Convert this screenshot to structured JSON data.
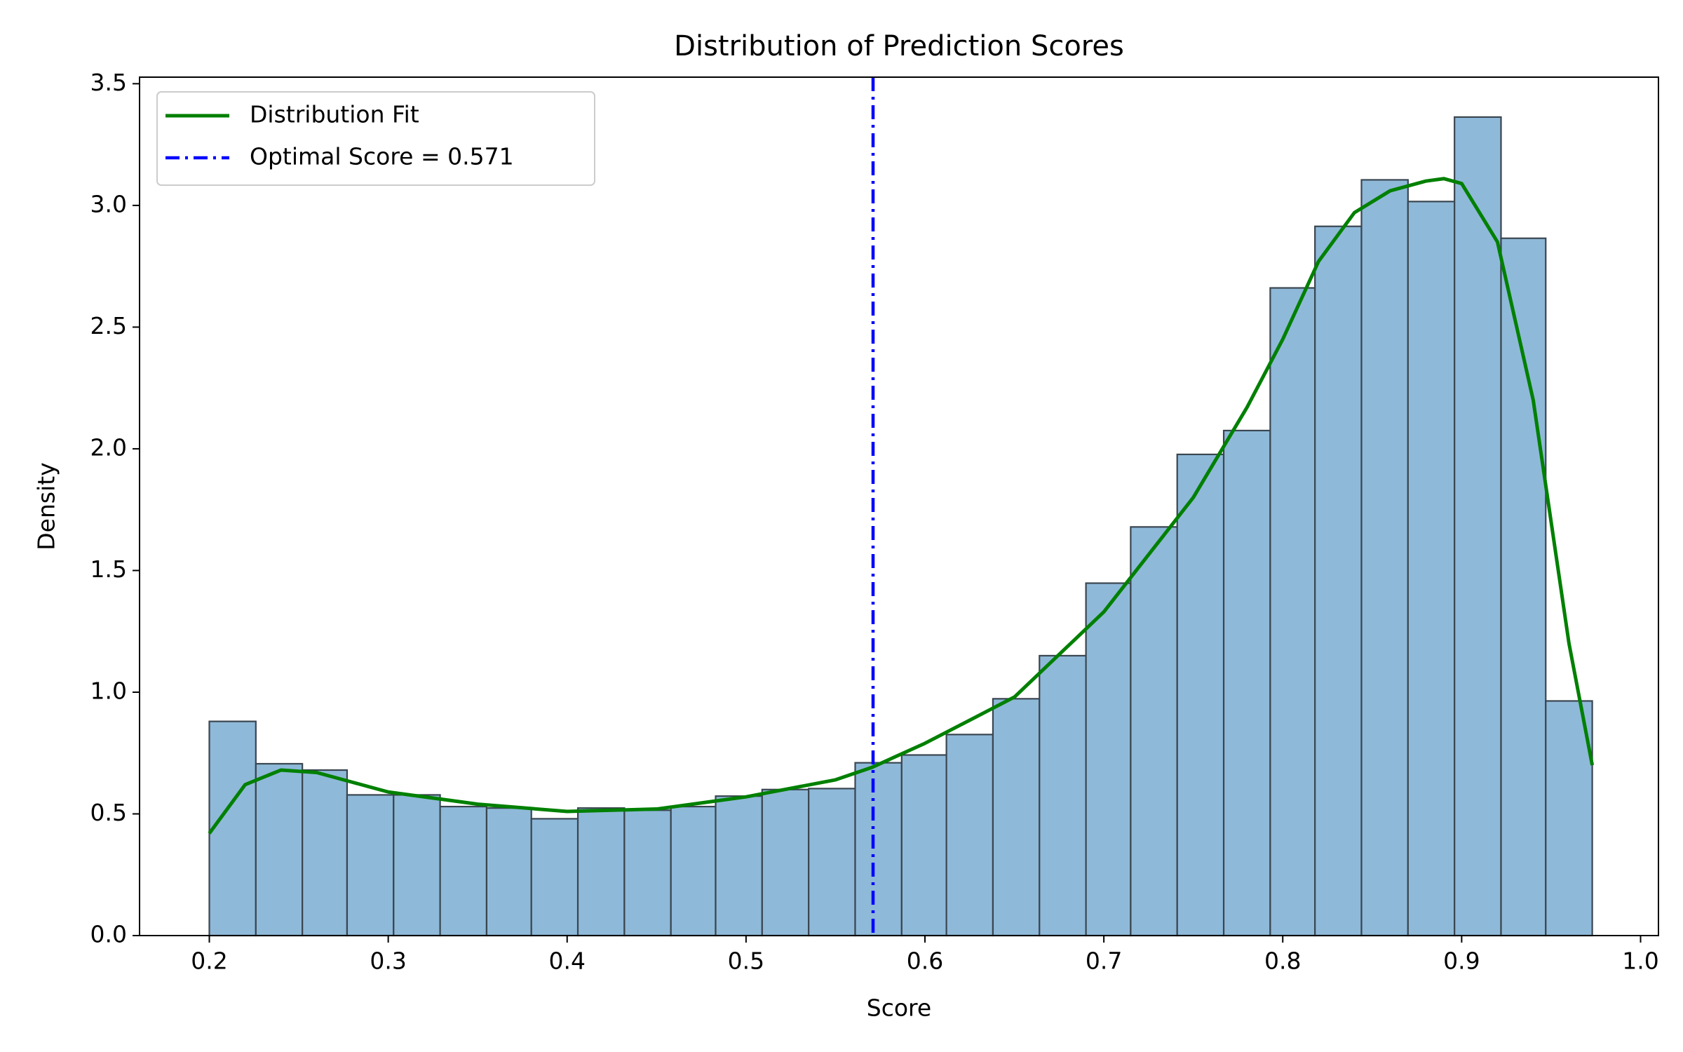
{
  "chart_data": {
    "type": "histogram",
    "title": "Distribution of Prediction Scores",
    "x_label": "Score",
    "y_label": "Density",
    "bins": [
      0.2,
      0.226,
      0.252,
      0.277,
      0.303,
      0.329,
      0.355,
      0.38,
      0.406,
      0.432,
      0.458,
      0.483,
      0.509,
      0.535,
      0.561,
      0.587,
      0.612,
      0.638,
      0.664,
      0.69,
      0.715,
      0.741,
      0.767,
      0.793,
      0.818,
      0.844,
      0.87,
      0.896,
      0.922,
      0.947,
      0.973
    ],
    "values": [
      0.88,
      0.706,
      0.68,
      0.578,
      0.578,
      0.53,
      0.524,
      0.48,
      0.524,
      0.515,
      0.53,
      0.573,
      0.6,
      0.604,
      0.71,
      0.742,
      0.826,
      0.973,
      1.15,
      1.448,
      1.679,
      1.977,
      2.075,
      2.661,
      2.914,
      3.105,
      3.016,
      3.363,
      2.865,
      0.964
    ],
    "color": "#8fb9d9",
    "edgecolor": "#3a4650",
    "line": {
      "name": "Distribution Fit",
      "color": "#008000",
      "x": [
        0.2,
        0.22,
        0.24,
        0.26,
        0.28,
        0.3,
        0.35,
        0.4,
        0.45,
        0.5,
        0.55,
        0.57,
        0.6,
        0.65,
        0.7,
        0.75,
        0.78,
        0.8,
        0.82,
        0.84,
        0.86,
        0.88,
        0.89,
        0.9,
        0.92,
        0.94,
        0.96,
        0.973
      ],
      "values": [
        0.42,
        0.62,
        0.68,
        0.67,
        0.63,
        0.59,
        0.54,
        0.51,
        0.52,
        0.57,
        0.64,
        0.69,
        0.79,
        0.98,
        1.33,
        1.8,
        2.17,
        2.45,
        2.77,
        2.97,
        3.06,
        3.1,
        3.11,
        3.09,
        2.85,
        2.2,
        1.2,
        0.7
      ]
    },
    "vline": {
      "name": "Optimal Score = 0.571",
      "color": "#0000ff",
      "x": 0.571
    },
    "xlim": [
      0.161,
      1.01
    ],
    "ylim": [
      0,
      3.527
    ],
    "xticks": [
      0.2,
      0.3,
      0.4,
      0.5,
      0.6,
      0.7,
      0.8,
      0.9,
      {
        "value": 1.0,
        "label": "1.0"
      }
    ],
    "yticks": [
      {
        "value": 0,
        "label": "0.0"
      },
      0.5,
      {
        "value": 1,
        "label": "1.0"
      },
      1.5,
      {
        "value": 2,
        "label": "2.0"
      },
      2.5,
      {
        "value": 3,
        "label": "3.0"
      },
      3.5
    ],
    "legend": "upper left"
  }
}
